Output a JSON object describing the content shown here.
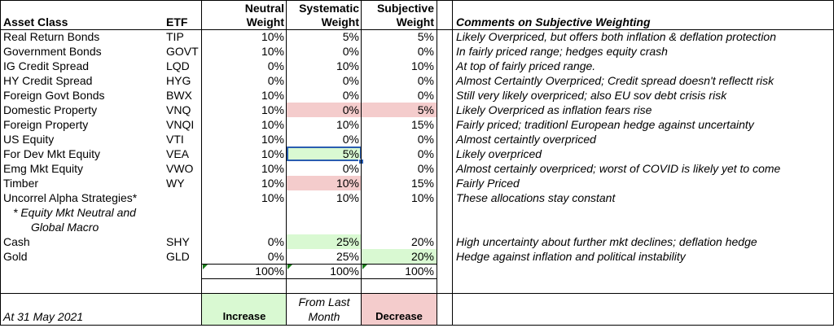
{
  "headers": {
    "asset_class": "Asset Class",
    "etf": "ETF",
    "neutral_1": "Neutral",
    "neutral_2": "Weight",
    "systematic_1": "Systematic",
    "systematic_2": "Weight",
    "subjective_1": "Subjective",
    "subjective_2": "Weight",
    "comments": "Comments on Subjective Weighting"
  },
  "rows": [
    {
      "asset": "Real Return Bonds",
      "etf": "TIP",
      "neutral": "10%",
      "systematic": "5%",
      "subjective": "5%",
      "comment": "Likely Overpriced, but offers both inflation & deflation protection"
    },
    {
      "asset": "Government Bonds",
      "etf": "GOVT",
      "neutral": "10%",
      "systematic": "0%",
      "subjective": "0%",
      "comment": "In fairly priced range; hedges equity crash"
    },
    {
      "asset": "IG Credit Spread",
      "etf": "LQD",
      "neutral": "0%",
      "systematic": "10%",
      "subjective": "10%",
      "comment": "At top of fairly priced range."
    },
    {
      "asset": "HY Credit Spread",
      "etf": "HYG",
      "neutral": "0%",
      "systematic": "0%",
      "subjective": "0%",
      "comment": "Almost Certaintly Overpriced; Credit spread doesn't reflectt risk"
    },
    {
      "asset": "Foreign Govt Bonds",
      "etf": "BWX",
      "neutral": "10%",
      "systematic": "0%",
      "subjective": "0%",
      "comment": "Still very likely overpriced; also EU sov debt crisis risk"
    },
    {
      "asset": "Domestic Property",
      "etf": "VNQ",
      "neutral": "10%",
      "systematic": "0%",
      "subjective": "5%",
      "comment": "Likely Overpriced as inflation fears rise"
    },
    {
      "asset": "Foreign Property",
      "etf": "VNQI",
      "neutral": "10%",
      "systematic": "10%",
      "subjective": "15%",
      "comment": "Fairly priced; traditionl European hedge against uncertainty"
    },
    {
      "asset": "US Equity",
      "etf": "VTI",
      "neutral": "10%",
      "systematic": "0%",
      "subjective": "0%",
      "comment": "Almost certaintly overpriced"
    },
    {
      "asset": "For Dev Mkt Equity",
      "etf": "VEA",
      "neutral": "10%",
      "systematic": "5%",
      "subjective": "0%",
      "comment": "Likely overpriced"
    },
    {
      "asset": "Emg Mkt Equity",
      "etf": "VWO",
      "neutral": "10%",
      "systematic": "0%",
      "subjective": "0%",
      "comment": "Almost certainly overpriced; worst of COVID is likely yet to come"
    },
    {
      "asset": "Timber",
      "etf": "WY",
      "neutral": "10%",
      "systematic": "10%",
      "subjective": "15%",
      "comment": "Fairly Priced"
    },
    {
      "asset": "Uncorrel Alpha Strategies*",
      "etf": "",
      "neutral": "10%",
      "systematic": "10%",
      "subjective": "10%",
      "comment": "These allocations stay constant"
    }
  ],
  "footnote": {
    "line1": "* Equity Mkt Neutral and",
    "line2": "Global Macro"
  },
  "rows2": [
    {
      "asset": "Cash",
      "etf": "SHY",
      "neutral": "0%",
      "systematic": "25%",
      "subjective": "20%",
      "comment": "High uncertainty about further mkt declines; deflation hedge"
    },
    {
      "asset": "Gold",
      "etf": "GLD",
      "neutral": "0%",
      "systematic": "25%",
      "subjective": "20%",
      "comment": "Hedge against inflation and political instability"
    }
  ],
  "totals": {
    "neutral": "100%",
    "systematic": "100%",
    "subjective": "100%"
  },
  "legend": {
    "date": "At 31 May 2021",
    "increase": "Increase",
    "from_1": "From Last",
    "from_2": "Month",
    "decrease": "Decrease"
  },
  "colors": {
    "increase_fill": "#d9f9d2",
    "decrease_fill": "#f4cccc",
    "selection": "#2a5db0"
  }
}
